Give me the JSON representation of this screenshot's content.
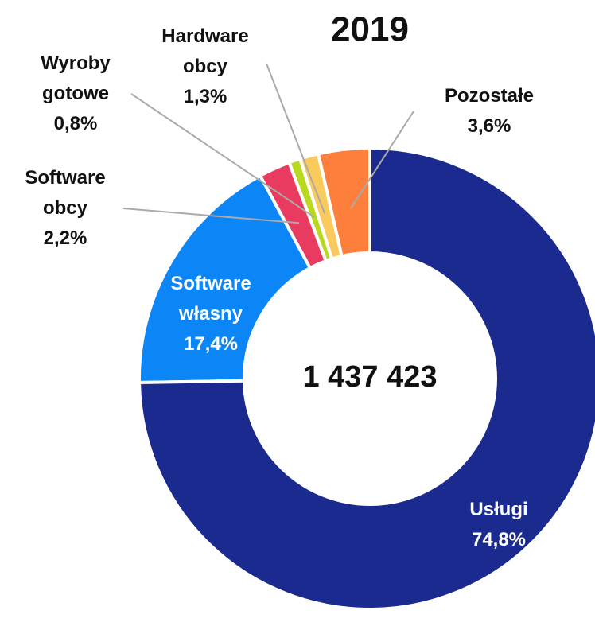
{
  "chart_data": {
    "type": "donut",
    "title": "2019",
    "center_label": "1 437 423",
    "categories": [
      "Usługi",
      "Software własny",
      "Software obcy",
      "Wyroby gotowe",
      "Hardware obcy",
      "Pozostałe"
    ],
    "values": [
      74.8,
      17.4,
      2.2,
      0.8,
      1.3,
      3.6
    ],
    "value_labels": [
      "74,8%",
      "17,4%",
      "2,2%",
      "0,8%",
      "1,3%",
      "3,6%"
    ],
    "colors": [
      "#1b2a8e",
      "#0c86f7",
      "#e93a60",
      "#b9d91f",
      "#fbca5c",
      "#fe7f3b"
    ]
  }
}
